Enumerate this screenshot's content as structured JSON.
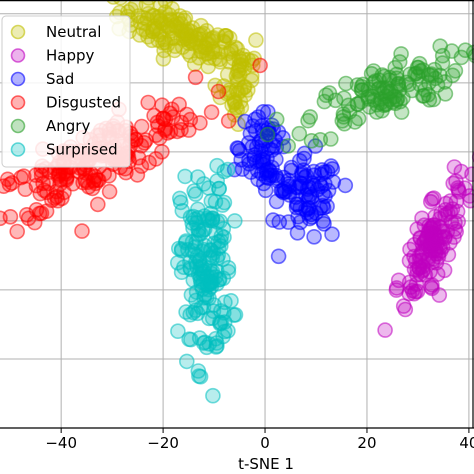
{
  "chart_data": {
    "type": "scatter",
    "xlabel": "t-SNE 1",
    "ylabel": "",
    "xlim": [
      -52,
      41
    ],
    "ylim": [
      -40,
      22
    ],
    "x_ticks": [
      -40,
      -20,
      0,
      20,
      40
    ],
    "x_tick_labels": [
      "−40",
      "−20",
      "0",
      "20",
      "40"
    ],
    "y_gridlines": [
      20,
      10,
      0,
      -10,
      -20,
      -30
    ],
    "grid": true,
    "legend_position": "top-left",
    "series": [
      {
        "name": "Neutral",
        "color": "#bfbf00",
        "clusters": [
          {
            "x": -17,
            "y": 17,
            "sx": 6,
            "sy": 1.6,
            "angle": -16,
            "n": 130
          },
          {
            "x": -5,
            "y": 12,
            "sx": 2.2,
            "sy": 2.8,
            "angle": 0,
            "n": 40
          },
          {
            "x": -6,
            "y": 6.5,
            "sx": 0.8,
            "sy": 1.2,
            "angle": 0,
            "n": 10
          }
        ]
      },
      {
        "name": "Happy",
        "color": "#bf00bf",
        "clusters": [
          {
            "x": 33,
            "y": -13,
            "sx": 5.5,
            "sy": 1.6,
            "angle": 55,
            "n": 130
          }
        ]
      },
      {
        "name": "Sad",
        "color": "#0000ff",
        "clusters": [
          {
            "x": -1,
            "y": 1.5,
            "sx": 2.5,
            "sy": 2.2,
            "angle": 0,
            "n": 35
          },
          {
            "x": 1,
            "y": -3,
            "sx": 3.5,
            "sy": 1.8,
            "angle": -30,
            "n": 45
          },
          {
            "x": 9,
            "y": -7,
            "sx": 2.8,
            "sy": 3.2,
            "angle": 0,
            "n": 70
          }
        ]
      },
      {
        "name": "Disgusted",
        "color": "#ff0000",
        "clusters": [
          {
            "x": -33,
            "y": -1,
            "sx": 11,
            "sy": 2.2,
            "angle": 20,
            "n": 210
          }
        ]
      },
      {
        "name": "Angry",
        "color": "#2ca02c",
        "clusters": [
          {
            "x": 23,
            "y": 8.5,
            "sx": 8,
            "sy": 1.9,
            "angle": 16,
            "n": 120
          }
        ]
      },
      {
        "name": "Surprised",
        "color": "#00bfbf",
        "clusters": [
          {
            "x": -11.5,
            "y": -17,
            "sx": 2.5,
            "sy": 7,
            "angle": 0,
            "n": 170
          }
        ]
      }
    ]
  }
}
